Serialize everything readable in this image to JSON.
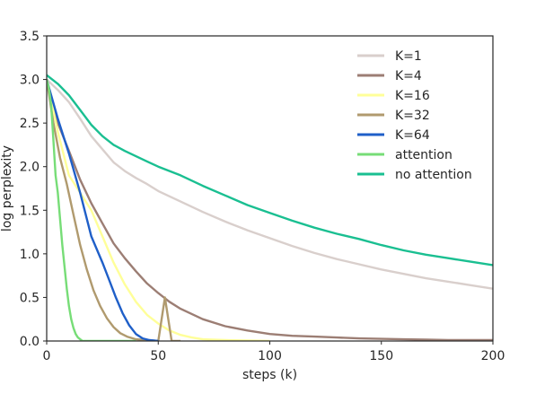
{
  "chart_data": {
    "type": "line",
    "title": "",
    "xlabel": "steps (k)",
    "ylabel": "log perplexity",
    "xlim": [
      0,
      200
    ],
    "ylim": [
      0,
      3.5
    ],
    "xticks": [
      "0",
      "50",
      "100",
      "150",
      "200"
    ],
    "yticks": [
      "0.0",
      "0.5",
      "1.0",
      "1.5",
      "2.0",
      "2.5",
      "3.0",
      "3.5"
    ],
    "grid": false,
    "legend_position": "top-right",
    "series": [
      {
        "name": "K=1",
        "color": "#d9cfcc",
        "x": [
          0,
          5,
          10,
          15,
          20,
          25,
          30,
          35,
          40,
          45,
          50,
          60,
          70,
          80,
          90,
          100,
          110,
          120,
          130,
          140,
          150,
          160,
          170,
          180,
          190,
          200
        ],
        "y": [
          3.0,
          2.88,
          2.74,
          2.55,
          2.35,
          2.2,
          2.05,
          1.95,
          1.87,
          1.8,
          1.72,
          1.6,
          1.48,
          1.37,
          1.27,
          1.18,
          1.09,
          1.01,
          0.94,
          0.88,
          0.82,
          0.77,
          0.72,
          0.68,
          0.64,
          0.6
        ]
      },
      {
        "name": "K=4",
        "color": "#9c7e74",
        "x": [
          0,
          5,
          10,
          15,
          20,
          25,
          30,
          35,
          40,
          45,
          50,
          55,
          60,
          70,
          80,
          90,
          100,
          110,
          120,
          130,
          140,
          150,
          160,
          170,
          180,
          190,
          200
        ],
        "y": [
          3.0,
          2.5,
          2.18,
          1.85,
          1.58,
          1.35,
          1.12,
          0.95,
          0.8,
          0.66,
          0.55,
          0.45,
          0.37,
          0.25,
          0.17,
          0.12,
          0.08,
          0.06,
          0.05,
          0.04,
          0.03,
          0.025,
          0.02,
          0.015,
          0.01,
          0.01,
          0.01
        ]
      },
      {
        "name": "K=16",
        "color": "#ffff99",
        "x": [
          0,
          5,
          10,
          15,
          20,
          25,
          30,
          35,
          40,
          45,
          50,
          55,
          60,
          65,
          70,
          80,
          100
        ],
        "y": [
          3.0,
          2.4,
          1.9,
          1.7,
          1.5,
          1.2,
          0.9,
          0.65,
          0.45,
          0.3,
          0.2,
          0.12,
          0.07,
          0.04,
          0.02,
          0.01,
          0.0
        ]
      },
      {
        "name": "K=32",
        "color": "#b09a6e",
        "x": [
          0,
          3,
          6,
          9,
          12,
          15,
          18,
          21,
          24,
          27,
          30,
          33,
          36,
          40,
          45,
          50,
          53,
          56,
          60
        ],
        "y": [
          3.0,
          2.5,
          2.1,
          1.8,
          1.45,
          1.1,
          0.82,
          0.58,
          0.4,
          0.26,
          0.16,
          0.09,
          0.05,
          0.02,
          0.01,
          0.0,
          0.5,
          0.0,
          0.0
        ]
      },
      {
        "name": "K=64",
        "color": "#1f5fc8",
        "x": [
          0,
          5,
          10,
          15,
          20,
          25,
          28,
          31,
          34,
          37,
          40,
          43,
          46,
          50
        ],
        "y": [
          3.0,
          2.55,
          2.15,
          1.7,
          1.2,
          0.9,
          0.7,
          0.5,
          0.32,
          0.18,
          0.08,
          0.03,
          0.01,
          0.0
        ]
      },
      {
        "name": "attention",
        "color": "#77dd77",
        "x": [
          0,
          1,
          2,
          3,
          4,
          5,
          6,
          7,
          8,
          9,
          10,
          11,
          12,
          13,
          14,
          15,
          16,
          18,
          20,
          25,
          30,
          35,
          40
        ],
        "y": [
          3.0,
          2.9,
          2.7,
          2.3,
          1.9,
          1.7,
          1.4,
          1.1,
          0.85,
          0.6,
          0.4,
          0.25,
          0.15,
          0.08,
          0.04,
          0.02,
          0.0,
          0.0,
          0.0,
          0.0,
          0.0,
          0.0,
          0.0
        ]
      },
      {
        "name": "no attention",
        "color": "#1abf91",
        "x": [
          0,
          5,
          10,
          15,
          20,
          25,
          30,
          35,
          40,
          45,
          50,
          60,
          70,
          80,
          90,
          100,
          110,
          120,
          130,
          140,
          150,
          160,
          170,
          180,
          190,
          200
        ],
        "y": [
          3.05,
          2.95,
          2.82,
          2.65,
          2.48,
          2.35,
          2.25,
          2.18,
          2.12,
          2.06,
          2.0,
          1.9,
          1.78,
          1.67,
          1.56,
          1.47,
          1.38,
          1.3,
          1.23,
          1.17,
          1.1,
          1.04,
          0.99,
          0.95,
          0.91,
          0.87
        ]
      }
    ]
  }
}
